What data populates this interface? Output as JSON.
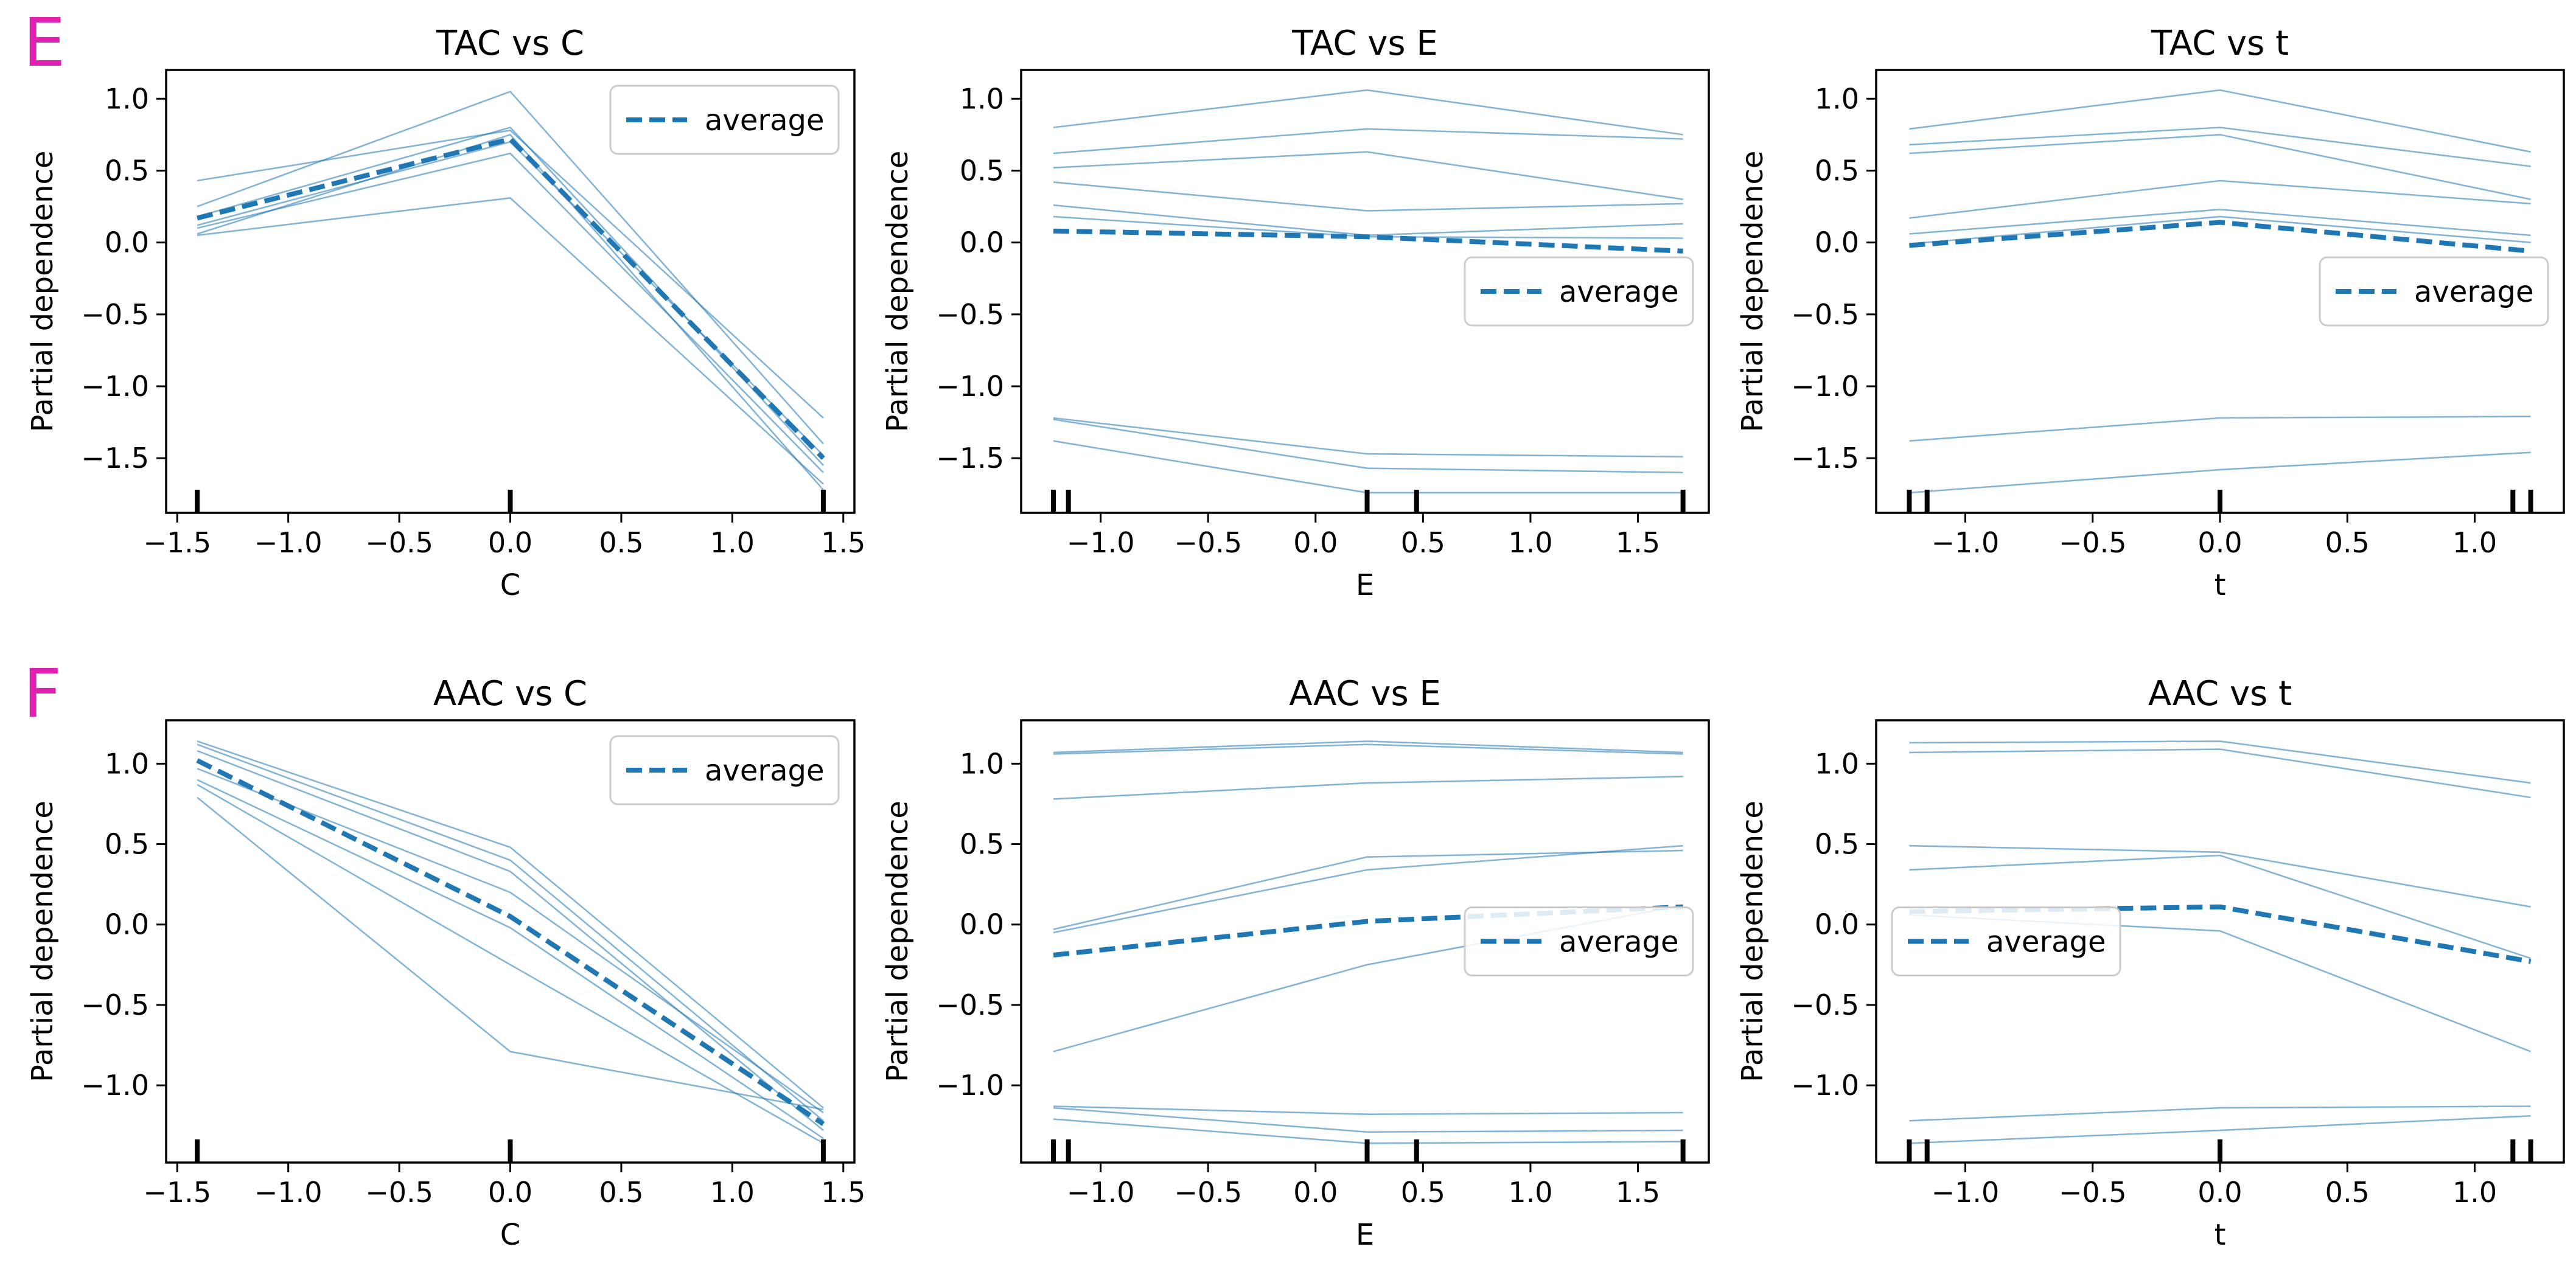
{
  "panel_labels": [
    "E",
    "F"
  ],
  "colors": {
    "average": "#1f77b4",
    "ice": "#1f77b4",
    "panel_label": "#e020b0",
    "axes": "#000000",
    "legend_border": "#cccccc"
  },
  "chart_data": [
    {
      "type": "line",
      "title": "TAC vs C",
      "xlabel": "C",
      "ylabel": "Partial dependence",
      "xlim": [
        -1.55,
        1.55
      ],
      "ylim": [
        -1.88,
        1.2
      ],
      "xticks": [
        -1.5,
        -1.0,
        -0.5,
        0.0,
        0.5,
        1.0,
        1.5
      ],
      "xtick_labels": [
        "−1.5",
        "−1.0",
        "−0.5",
        "0.0",
        "0.5",
        "1.0",
        "1.5"
      ],
      "yticks": [
        -1.5,
        -1.0,
        -0.5,
        0.0,
        0.5,
        1.0
      ],
      "ytick_labels": [
        "−1.5",
        "−1.0",
        "−0.5",
        "0.0",
        "0.5",
        "1.0"
      ],
      "x": [
        -1.41,
        0.0,
        1.41
      ],
      "rug": [
        -1.41,
        0.0,
        1.41
      ],
      "ice_lines": [
        [
          0.43,
          0.78,
          -1.22
        ],
        [
          0.25,
          1.05,
          -1.4
        ],
        [
          0.18,
          0.8,
          -1.55
        ],
        [
          0.06,
          0.75,
          -1.72
        ],
        [
          0.12,
          0.7,
          -1.48
        ],
        [
          0.1,
          0.62,
          -1.6
        ],
        [
          0.05,
          0.31,
          -1.68
        ]
      ],
      "average": [
        0.17,
        0.72,
        -1.5
      ],
      "legend": {
        "label": "average",
        "position": "upper right"
      }
    },
    {
      "type": "line",
      "title": "TAC vs E",
      "xlabel": "E",
      "ylabel": "Partial dependence",
      "xlim": [
        -1.37,
        1.83
      ],
      "ylim": [
        -1.88,
        1.2
      ],
      "xticks": [
        -1.0,
        -0.5,
        0.0,
        0.5,
        1.0,
        1.5
      ],
      "xtick_labels": [
        "−1.0",
        "−0.5",
        "0.0",
        "0.5",
        "1.0",
        "1.5"
      ],
      "yticks": [
        -1.5,
        -1.0,
        -0.5,
        0.0,
        0.5,
        1.0
      ],
      "ytick_labels": [
        "−1.5",
        "−1.0",
        "−0.5",
        "0.0",
        "0.5",
        "1.0"
      ],
      "x": [
        -1.22,
        0.24,
        1.71
      ],
      "rug": [
        -1.22,
        -1.15,
        0.24,
        0.47,
        1.71
      ],
      "ice_lines": [
        [
          0.8,
          1.06,
          0.75
        ],
        [
          0.62,
          0.79,
          0.72
        ],
        [
          0.52,
          0.63,
          0.3
        ],
        [
          0.42,
          0.22,
          0.27
        ],
        [
          0.26,
          0.05,
          0.13
        ],
        [
          0.18,
          0.04,
          0.03
        ],
        [
          -1.22,
          -1.47,
          -1.49
        ],
        [
          -1.23,
          -1.57,
          -1.6
        ],
        [
          -1.38,
          -1.74,
          -1.74
        ]
      ],
      "average": [
        0.08,
        0.04,
        -0.06
      ],
      "legend": {
        "label": "average",
        "position": "center right"
      }
    },
    {
      "type": "line",
      "title": "TAC vs t",
      "xlabel": "t",
      "ylabel": "Partial dependence",
      "xlim": [
        -1.35,
        1.35
      ],
      "ylim": [
        -1.88,
        1.2
      ],
      "xticks": [
        -1.0,
        -0.5,
        0.0,
        0.5,
        1.0
      ],
      "xtick_labels": [
        "−1.0",
        "−0.5",
        "0.0",
        "0.5",
        "1.0"
      ],
      "yticks": [
        -1.5,
        -1.0,
        -0.5,
        0.0,
        0.5,
        1.0
      ],
      "ytick_labels": [
        "−1.5",
        "−1.0",
        "−0.5",
        "0.0",
        "0.5",
        "1.0"
      ],
      "x": [
        -1.22,
        0.0,
        1.22
      ],
      "rug": [
        -1.22,
        -1.15,
        0.0,
        1.15,
        1.22
      ],
      "ice_lines": [
        [
          0.79,
          1.06,
          0.63
        ],
        [
          0.68,
          0.8,
          0.53
        ],
        [
          0.62,
          0.75,
          0.3
        ],
        [
          0.17,
          0.43,
          0.27
        ],
        [
          0.06,
          0.23,
          0.05
        ],
        [
          -0.01,
          0.18,
          0.0
        ],
        [
          -1.38,
          -1.22,
          -1.21
        ],
        [
          -1.74,
          -1.58,
          -1.46
        ]
      ],
      "average": [
        -0.02,
        0.14,
        -0.06
      ],
      "legend": {
        "label": "average",
        "position": "center right"
      }
    },
    {
      "type": "line",
      "title": "AAC vs C",
      "xlabel": "C",
      "ylabel": "Partial dependence",
      "xlim": [
        -1.55,
        1.55
      ],
      "ylim": [
        -1.48,
        1.27
      ],
      "xticks": [
        -1.5,
        -1.0,
        -0.5,
        0.0,
        0.5,
        1.0,
        1.5
      ],
      "xtick_labels": [
        "−1.5",
        "−1.0",
        "−0.5",
        "0.0",
        "0.5",
        "1.0",
        "1.5"
      ],
      "yticks": [
        -1.0,
        -0.5,
        0.0,
        0.5,
        1.0
      ],
      "ytick_labels": [
        "−1.0",
        "−0.5",
        "0.0",
        "0.5",
        "1.0"
      ],
      "x": [
        -1.41,
        0.0,
        1.41
      ],
      "rug": [
        -1.41,
        0.0,
        1.41
      ],
      "ice_lines": [
        [
          1.14,
          0.48,
          -1.14
        ],
        [
          1.12,
          0.4,
          -1.22
        ],
        [
          1.08,
          0.33,
          -1.28
        ],
        [
          0.97,
          0.2,
          -1.17
        ],
        [
          0.9,
          -0.02,
          -1.33
        ],
        [
          0.87,
          -0.25,
          -1.36
        ],
        [
          0.79,
          -0.79,
          -1.15
        ]
      ],
      "average": [
        1.02,
        0.05,
        -1.24
      ],
      "legend": {
        "label": "average",
        "position": "upper right"
      }
    },
    {
      "type": "line",
      "title": "AAC vs E",
      "xlabel": "E",
      "ylabel": "Partial dependence",
      "xlim": [
        -1.37,
        1.83
      ],
      "ylim": [
        -1.48,
        1.27
      ],
      "xticks": [
        -1.0,
        -0.5,
        0.0,
        0.5,
        1.0,
        1.5
      ],
      "xtick_labels": [
        "−1.0",
        "−0.5",
        "0.0",
        "0.5",
        "1.0",
        "1.5"
      ],
      "yticks": [
        -1.0,
        -0.5,
        0.0,
        0.5,
        1.0
      ],
      "ytick_labels": [
        "−1.0",
        "−0.5",
        "0.0",
        "0.5",
        "1.0"
      ],
      "x": [
        -1.22,
        0.24,
        1.71
      ],
      "rug": [
        -1.22,
        -1.15,
        0.24,
        0.47,
        1.71
      ],
      "ice_lines": [
        [
          1.07,
          1.14,
          1.07
        ],
        [
          1.06,
          1.12,
          1.06
        ],
        [
          0.78,
          0.88,
          0.92
        ],
        [
          -0.03,
          0.42,
          0.46
        ],
        [
          -0.05,
          0.34,
          0.49
        ],
        [
          -0.79,
          -0.25,
          0.12
        ],
        [
          -1.13,
          -1.18,
          -1.17
        ],
        [
          -1.14,
          -1.29,
          -1.28
        ],
        [
          -1.21,
          -1.36,
          -1.35
        ]
      ],
      "average": [
        -0.19,
        0.02,
        0.11
      ],
      "legend": {
        "label": "average",
        "position": "center right"
      }
    },
    {
      "type": "line",
      "title": "AAC vs t",
      "xlabel": "t",
      "ylabel": "Partial dependence",
      "xlim": [
        -1.35,
        1.35
      ],
      "ylim": [
        -1.48,
        1.27
      ],
      "xticks": [
        -1.0,
        -0.5,
        0.0,
        0.5,
        1.0
      ],
      "xtick_labels": [
        "−1.0",
        "−0.5",
        "0.0",
        "0.5",
        "1.0"
      ],
      "yticks": [
        -1.0,
        -0.5,
        0.0,
        0.5,
        1.0
      ],
      "ytick_labels": [
        "−1.0",
        "−0.5",
        "0.0",
        "0.5",
        "1.0"
      ],
      "x": [
        -1.22,
        0.0,
        1.22
      ],
      "rug": [
        -1.22,
        -1.15,
        0.0,
        1.15,
        1.22
      ],
      "ice_lines": [
        [
          1.13,
          1.14,
          0.88
        ],
        [
          1.07,
          1.09,
          0.79
        ],
        [
          0.49,
          0.45,
          0.11
        ],
        [
          0.34,
          0.43,
          -0.21
        ],
        [
          0.06,
          -0.04,
          -0.79
        ],
        [
          -1.22,
          -1.14,
          -1.13
        ],
        [
          -1.36,
          -1.28,
          -1.19
        ]
      ],
      "average": [
        0.08,
        0.11,
        -0.23
      ],
      "legend": {
        "label": "average",
        "position": "center left"
      }
    }
  ]
}
